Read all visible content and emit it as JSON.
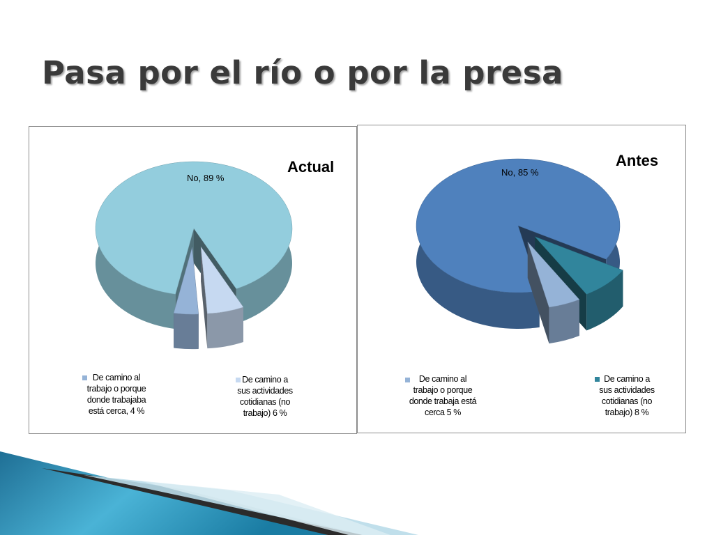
{
  "slide": {
    "title": "Pasa por el río o por la presa"
  },
  "chart_data": [
    {
      "type": "pie",
      "title": "Actual",
      "slices": [
        {
          "label": "No, 89 %",
          "value": 89,
          "color": "#93cddd"
        },
        {
          "label": "De camino a sus actividades cotidianas (no trabajo) 6 %",
          "value": 6,
          "color": "#c6d9f1"
        },
        {
          "label": "De camino al trabajo o porque donde trabajaba está cerca, 4 %",
          "value": 4,
          "color": "#95b3d7"
        }
      ]
    },
    {
      "type": "pie",
      "title": "Antes",
      "slices": [
        {
          "label": "No, 85 %",
          "value": 85,
          "color": "#4f81bd"
        },
        {
          "label": "De camino a sus actividades cotidianas (no trabajo) 8 %",
          "value": 8,
          "color": "#31859c"
        },
        {
          "label": "De camino al trabajo o porque donde trabaja está cerca 5 %",
          "value": 5,
          "color": "#95b3d7"
        }
      ]
    }
  ]
}
